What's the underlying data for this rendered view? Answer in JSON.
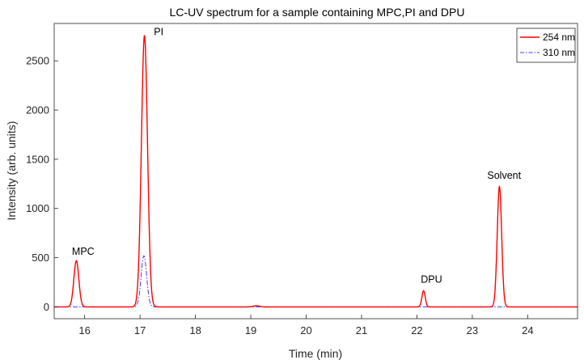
{
  "chart_data": {
    "type": "line",
    "title": "LC-UV spectrum for a sample containing MPC,PI and DPU",
    "xlabel": "Time (min)",
    "ylabel": "Intensity (arb. units)",
    "xlim": [
      15.45,
      24.9
    ],
    "ylim": [
      -120,
      2880
    ],
    "xticks": [
      16,
      17,
      18,
      19,
      20,
      21,
      22,
      23,
      24
    ],
    "yticks": [
      0,
      500,
      1000,
      1500,
      2000,
      2500
    ],
    "grid": false,
    "legend": "top-right",
    "baseline": 0,
    "series": [
      {
        "name": "254 nm",
        "color": "#ff0000",
        "style": "solid",
        "peaks": [
          {
            "t": 15.85,
            "h": 470,
            "w": 0.045
          },
          {
            "t": 17.08,
            "h": 2760,
            "w": 0.055
          },
          {
            "t": 19.1,
            "h": 12,
            "w": 0.05
          },
          {
            "t": 22.12,
            "h": 165,
            "w": 0.03
          },
          {
            "t": 23.49,
            "h": 1225,
            "w": 0.04
          }
        ]
      },
      {
        "name": "310 nm",
        "color": "#3d3dff",
        "style": "dashdot",
        "peaks": [
          {
            "t": 17.07,
            "h": 520,
            "w": 0.05
          }
        ]
      }
    ],
    "annotations": [
      {
        "text": "MPC",
        "x": 15.77,
        "y": 530
      },
      {
        "text": "PI",
        "x": 17.25,
        "y": 2760
      },
      {
        "text": "DPU",
        "x": 22.07,
        "y": 245
      },
      {
        "text": "Solvent",
        "x": 23.27,
        "y": 1300
      }
    ]
  }
}
